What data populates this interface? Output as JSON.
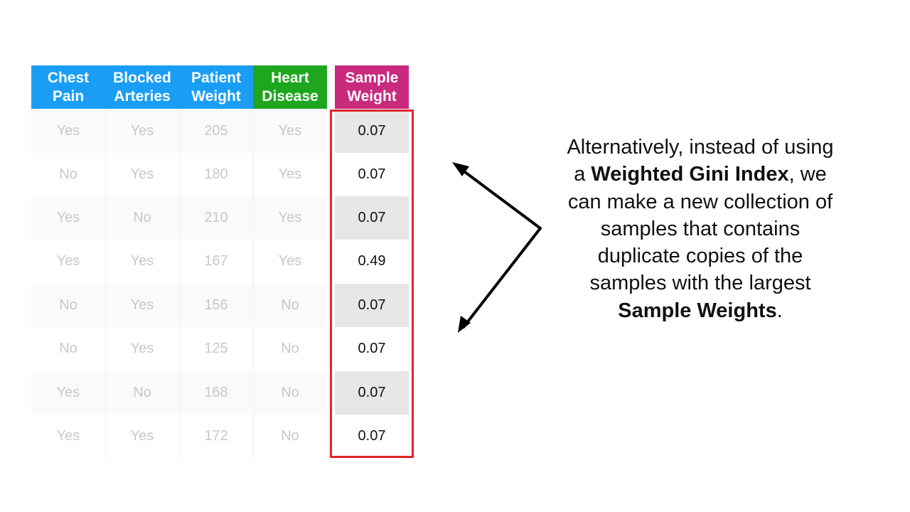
{
  "table": {
    "headers": [
      {
        "line1": "Chest",
        "line2": "Pain",
        "color": "#1a9ef5"
      },
      {
        "line1": "Blocked",
        "line2": "Arteries",
        "color": "#1a9ef5"
      },
      {
        "line1": "Patient",
        "line2": "Weight",
        "color": "#1a9ef5"
      },
      {
        "line1": "Heart",
        "line2": "Disease",
        "color": "#1fa61f"
      },
      {
        "line1": "Sample",
        "line2": "Weight",
        "color": "#c92a7e"
      }
    ],
    "rows": [
      {
        "chest_pain": "Yes",
        "blocked_arteries": "Yes",
        "patient_weight": "205",
        "heart_disease": "Yes",
        "sample_weight": "0.07"
      },
      {
        "chest_pain": "No",
        "blocked_arteries": "Yes",
        "patient_weight": "180",
        "heart_disease": "Yes",
        "sample_weight": "0.07"
      },
      {
        "chest_pain": "Yes",
        "blocked_arteries": "No",
        "patient_weight": "210",
        "heart_disease": "Yes",
        "sample_weight": "0.07"
      },
      {
        "chest_pain": "Yes",
        "blocked_arteries": "Yes",
        "patient_weight": "167",
        "heart_disease": "Yes",
        "sample_weight": "0.49"
      },
      {
        "chest_pain": "No",
        "blocked_arteries": "Yes",
        "patient_weight": "156",
        "heart_disease": "No",
        "sample_weight": "0.07"
      },
      {
        "chest_pain": "No",
        "blocked_arteries": "Yes",
        "patient_weight": "125",
        "heart_disease": "No",
        "sample_weight": "0.07"
      },
      {
        "chest_pain": "Yes",
        "blocked_arteries": "No",
        "patient_weight": "168",
        "heart_disease": "No",
        "sample_weight": "0.07"
      },
      {
        "chest_pain": "Yes",
        "blocked_arteries": "Yes",
        "patient_weight": "172",
        "heart_disease": "No",
        "sample_weight": "0.07"
      }
    ],
    "highlight_color": "#e0262a"
  },
  "explanation": {
    "line1": "Alternatively, instead of using",
    "line2_prefix": "a ",
    "line2_bold": "Weighted Gini Index",
    "line2_suffix": ", we",
    "line3": "can make a new collection of",
    "line4": "samples that contains",
    "line5": "duplicate copies of the",
    "line6": "samples with the largest",
    "line7_bold": "Sample Weights",
    "line7_suffix": "."
  }
}
